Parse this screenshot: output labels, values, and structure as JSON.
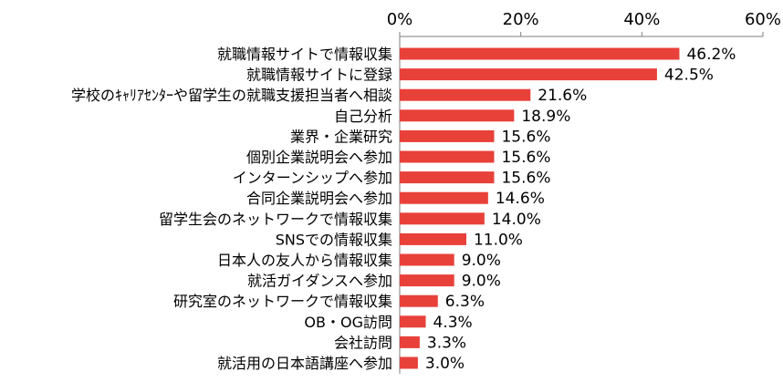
{
  "chart_data": {
    "type": "bar",
    "orientation": "horizontal",
    "title": "",
    "xlabel": "",
    "ylabel": "",
    "xlim": [
      0,
      60
    ],
    "x_ticks": [
      "0%",
      "20%",
      "40%",
      "60%"
    ],
    "x_tick_values": [
      0,
      20,
      40,
      60
    ],
    "grid": false,
    "bar_color": "#e8413a",
    "categories": [
      "就職情報サイトで情報収集",
      "就職情報サイトに登録",
      "学校のｷｬﾘｱｾﾝﾀｰや留学生の就職支援担当者へ相談",
      "自己分析",
      "業界・企業研究",
      "個別企業説明会へ参加",
      "インターンシップへ参加",
      "合同企業説明会へ参加",
      "留学生会のネットワークで情報収集",
      "SNSでの情報収集",
      "日本人の友人から情報収集",
      "就活ガイダンスへ参加",
      "研究室のネットワークで情報収集",
      "OB・OG訪問",
      "会社訪問",
      "就活用の日本語講座へ参加"
    ],
    "values": [
      46.2,
      42.5,
      21.6,
      18.9,
      15.6,
      15.6,
      15.6,
      14.6,
      14.0,
      11.0,
      9.0,
      9.0,
      6.3,
      4.3,
      3.3,
      3.0
    ],
    "value_labels": [
      "46.2%",
      "42.5%",
      "21.6%",
      "18.9%",
      "15.6%",
      "15.6%",
      "15.6%",
      "14.6%",
      "14.0%",
      "11.0%",
      "9.0%",
      "9.0%",
      "6.3%",
      "4.3%",
      "3.3%",
      "3.0%"
    ]
  }
}
